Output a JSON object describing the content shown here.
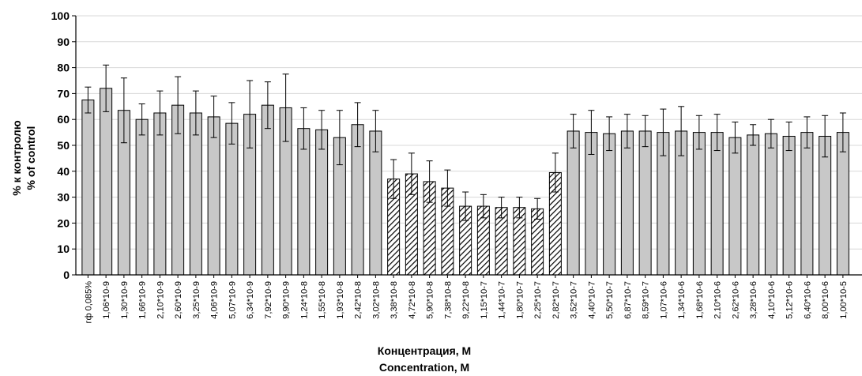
{
  "chart_data": {
    "type": "bar",
    "title": "",
    "ylabel": [
      "% к контролю",
      "% of control"
    ],
    "xlabel": [
      "Концентрация, М",
      "Concentration, M"
    ],
    "ylim": [
      0,
      100
    ],
    "yticks": [
      0,
      10,
      20,
      30,
      40,
      50,
      60,
      70,
      80,
      90,
      100
    ],
    "grid": true,
    "categories": [
      "гф 0,085%",
      "1,06*10-9",
      "1,30*10-9",
      "1,66*10-9",
      "2,10*10-9",
      "2,60*10-9",
      "3,25*10-9",
      "4,06*10-9",
      "5,07*10-9",
      "6,34*10-9",
      "7,92*10-9",
      "9,90*10-9",
      "1,24*10-8",
      "1,55*10-8",
      "1,93*10-8",
      "2,42*10-8",
      "3,02*10-8",
      "3,38*10-8",
      "4,72*10-8",
      "5,90*10-8",
      "7,38*10-8",
      "9,22*10-8",
      "1,15*10-7",
      "1,44*10-7",
      "1,80*10-7",
      "2,25*10-7",
      "2,82*10-7",
      "3,52*10-7",
      "4,40*10-7",
      "5,50*10-7",
      "6,87*10-7",
      "8,59*10-7",
      "1,07*10-6",
      "1,34*10-6",
      "1,68*10-6",
      "2,10*10-6",
      "2,62*10-6",
      "3,28*10-6",
      "4,10*10-6",
      "5,12*10-6",
      "6,40*10-6",
      "8,00*10-6",
      "1,00*10-5"
    ],
    "values": [
      67.5,
      72,
      63.5,
      60,
      62.5,
      65.5,
      62.5,
      61,
      58.5,
      62,
      65.5,
      64.5,
      56.5,
      56,
      53,
      58,
      55.5,
      37,
      39,
      36,
      33.5,
      26.5,
      26.5,
      26,
      26,
      25.5,
      39.5,
      55.5,
      55,
      54.5,
      55.5,
      55.5,
      55,
      55.5,
      55,
      55,
      53,
      54,
      54.5,
      53.5,
      55,
      53.5,
      55
    ],
    "errors": [
      5,
      9,
      12.5,
      6,
      8.5,
      11,
      8.5,
      8,
      8,
      13,
      9,
      13,
      8,
      7.5,
      10.5,
      8.5,
      8,
      7.5,
      8,
      8,
      7,
      5.5,
      4.5,
      4,
      4,
      4,
      7.5,
      6.5,
      8.5,
      6.5,
      6.5,
      6,
      9,
      9.5,
      6.5,
      7,
      6,
      4,
      5.5,
      5.5,
      6,
      8,
      7.5
    ],
    "hatched_range": [
      17,
      26
    ],
    "colors": {
      "bar_fill": "#c8c8c8",
      "hatch": "#000000",
      "grid": "#d8d8d8"
    }
  }
}
